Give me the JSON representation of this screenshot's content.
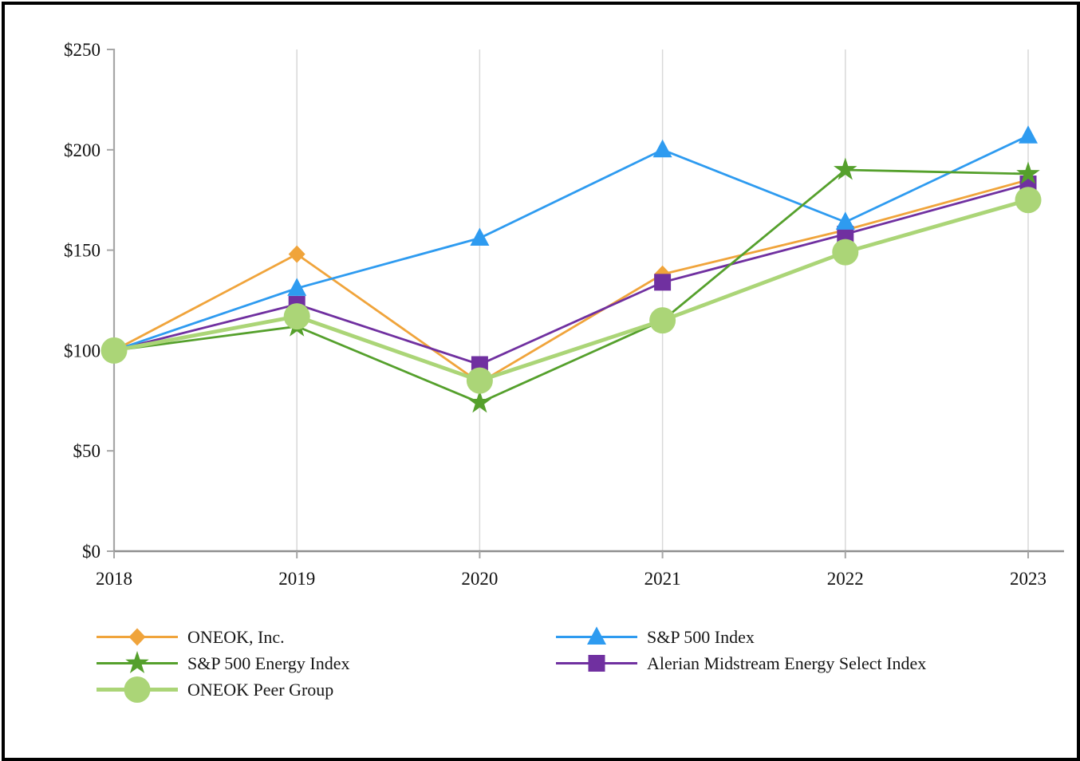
{
  "page": {
    "background": "#FFFFFF",
    "border_color": "#000000"
  },
  "chart_data": {
    "type": "line",
    "title": "",
    "xlabel": "",
    "ylabel": "",
    "x": [
      2018,
      2019,
      2020,
      2021,
      2022,
      2023
    ],
    "xtick_labels": [
      "2018",
      "2019",
      "2020",
      "2021",
      "2022",
      "2023"
    ],
    "ytick_values": [
      0,
      50,
      100,
      150,
      200,
      250
    ],
    "ytick_labels": [
      "$0",
      "$50",
      "$100",
      "$150",
      "$200",
      "$250"
    ],
    "ylim": [
      0,
      250
    ],
    "grid": "vertical-gridlines-only",
    "grid_color": "#D9D9D9",
    "axis_color": "#A6A6A6",
    "xaxis_color": "#8F8F8F",
    "tick_label_color": "#111111",
    "series": [
      {
        "name": "ONEOK, Inc.",
        "marker": "diamond",
        "color": "#F0A43B",
        "line": "normal",
        "values": [
          100,
          148,
          84,
          138,
          160,
          185
        ]
      },
      {
        "name": "S&P 500 Index",
        "marker": "triangle",
        "color": "#2E9BF0",
        "line": "normal",
        "values": [
          100,
          131,
          156,
          200,
          164,
          207
        ]
      },
      {
        "name": "S&P 500 Energy Index",
        "marker": "star",
        "color": "#55A02C",
        "line": "normal",
        "values": [
          100,
          112,
          74,
          115,
          190,
          188
        ]
      },
      {
        "name": "Alerian Midstream Energy Select Index",
        "marker": "square",
        "color": "#7030A0",
        "line": "normal",
        "values": [
          100,
          123,
          93,
          134,
          158,
          183
        ]
      },
      {
        "name": "ONEOK Peer Group",
        "marker": "circle",
        "color": "#ABD577",
        "line": "thick",
        "values": [
          100,
          117,
          85,
          115,
          149,
          175
        ]
      }
    ],
    "draw_order": [
      0,
      3,
      1,
      2,
      4
    ],
    "legend": {
      "position": "bottom",
      "columns": [
        [
          0,
          2,
          4
        ],
        [
          1,
          3
        ]
      ]
    }
  }
}
